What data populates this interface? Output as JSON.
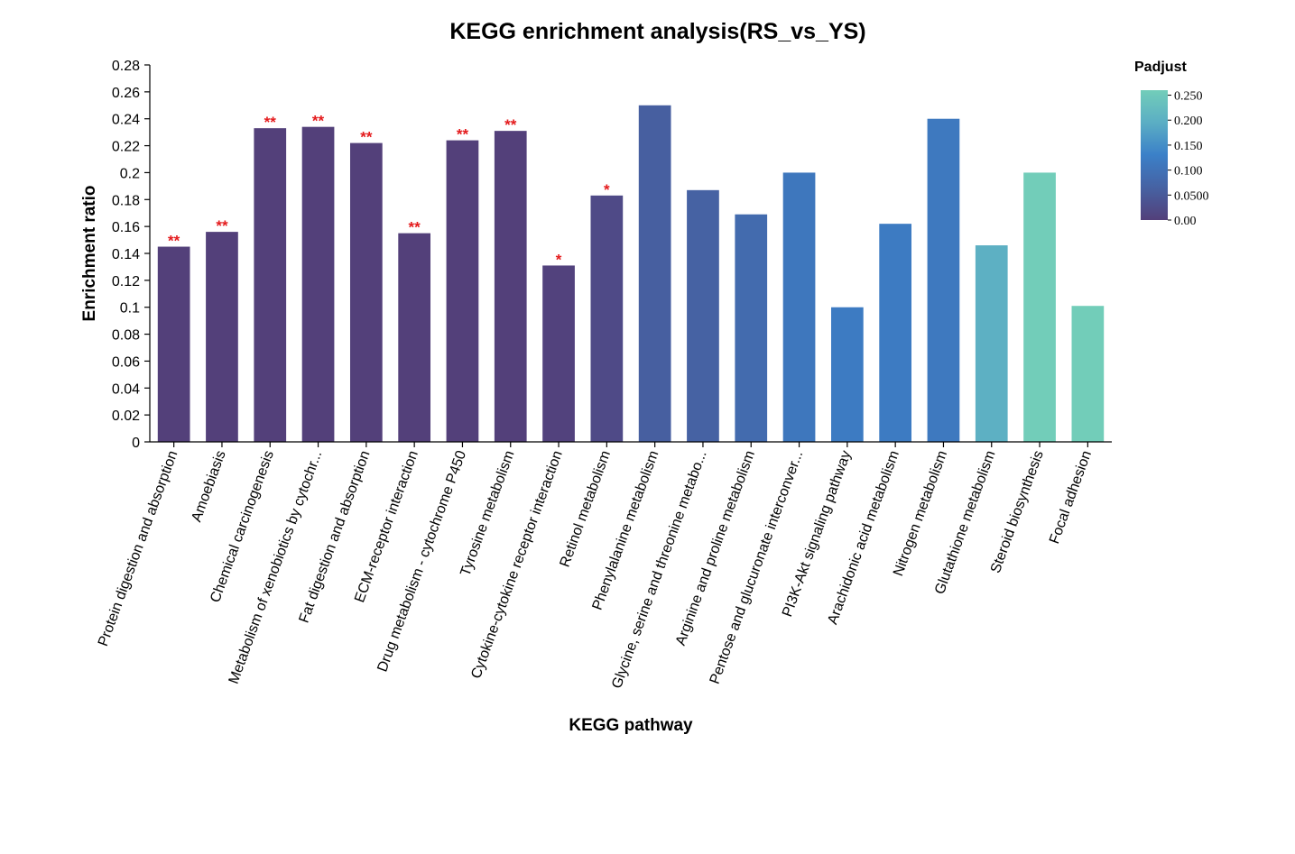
{
  "chart_data": {
    "type": "bar",
    "title": "KEGG enrichment analysis(RS_vs_YS)",
    "xlabel": "KEGG pathway",
    "ylabel": "Enrichment ratio",
    "ylim": [
      0,
      0.28
    ],
    "yticks": [
      "0",
      "0.02",
      "0.04",
      "0.06",
      "0.08",
      "0.1",
      "0.12",
      "0.14",
      "0.16",
      "0.18",
      "0.2",
      "0.22",
      "0.24",
      "0.26",
      "0.28"
    ],
    "categories": [
      "Protein digestion and absorption",
      "Amoebiasis",
      "Chemical carcinogenesis",
      "Metabolism of xenobiotics by cytochr...",
      "Fat digestion and absorption",
      "ECM-receptor interaction",
      "Drug metabolism - cytochrome P450",
      "Tyrosine metabolism",
      "Cytokine-cytokine receptor interaction",
      "Retinol metabolism",
      "Phenylalanine metabolism",
      "Glycine, serine and threonine metabo...",
      "Arginine and proline metabolism",
      "Pentose and glucuronate interconver...",
      "PI3K-Akt signaling pathway",
      "Arachidonic acid metabolism",
      "Nitrogen metabolism",
      "Glutathione metabolism",
      "Steroid biosynthesis",
      "Focal adhesion"
    ],
    "values": [
      0.145,
      0.156,
      0.233,
      0.234,
      0.222,
      0.155,
      0.224,
      0.231,
      0.131,
      0.183,
      0.25,
      0.187,
      0.169,
      0.2,
      0.1,
      0.162,
      0.24,
      0.146,
      0.2,
      0.101
    ],
    "padjust": [
      0.0,
      0.0,
      0.0,
      0.0,
      0.0,
      0.0,
      0.0,
      0.0,
      0.004,
      0.02,
      0.06,
      0.065,
      0.085,
      0.11,
      0.12,
      0.12,
      0.115,
      0.2,
      0.26,
      0.26
    ],
    "significance": [
      "**",
      "**",
      "**",
      "**",
      "**",
      "**",
      "**",
      "**",
      "*",
      "*",
      "",
      "",
      "",
      "",
      "",
      "",
      "",
      "",
      "",
      ""
    ],
    "legend": {
      "title": "Padjust",
      "placement": "top-right",
      "range": [
        0,
        0.26
      ],
      "ticks": [
        {
          "label": "0.250",
          "value": 0.25
        },
        {
          "label": "0.200",
          "value": 0.2
        },
        {
          "label": "0.150",
          "value": 0.15
        },
        {
          "label": "0.100",
          "value": 0.1
        },
        {
          "label": "0.0500",
          "value": 0.05
        },
        {
          "label": "0.00",
          "value": 0.0
        }
      ],
      "colors": [
        "#53407a",
        "#4662a3",
        "#3b80c8",
        "#5baec4",
        "#72cdb9"
      ]
    }
  }
}
